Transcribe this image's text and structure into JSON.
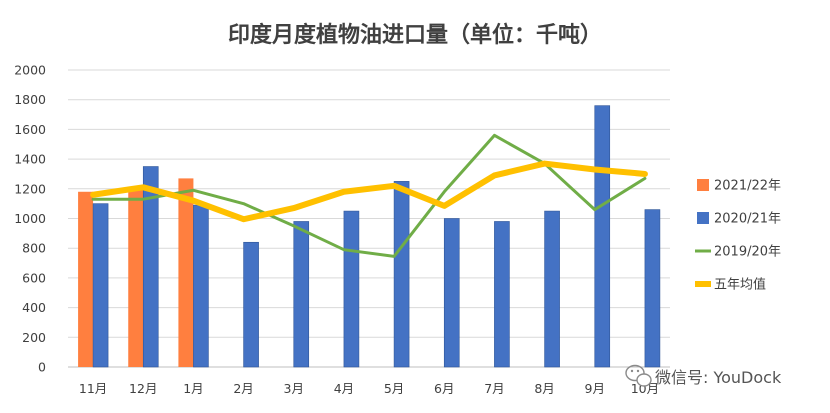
{
  "chart_data": {
    "type": "bar",
    "title": "印度月度植物油进口量（单位：千吨）",
    "categories": [
      "11月",
      "12月",
      "1月",
      "2月",
      "3月",
      "4月",
      "5月",
      "6月",
      "7月",
      "8月",
      "9月",
      "10月"
    ],
    "ylim": [
      0,
      2000
    ],
    "yticks": [
      0,
      200,
      400,
      600,
      800,
      1000,
      1200,
      1400,
      1600,
      1800,
      2000
    ],
    "grid": true,
    "legend_position": "right",
    "series": [
      {
        "name": "2021/22年",
        "type": "bar",
        "color": "#ff7f3f",
        "values": [
          1180,
          1210,
          1270,
          null,
          null,
          null,
          null,
          null,
          null,
          null,
          null,
          null
        ]
      },
      {
        "name": "2020/21年",
        "type": "bar",
        "color": "#4472c4",
        "values": [
          1100,
          1350,
          1090,
          840,
          980,
          1050,
          1250,
          1000,
          980,
          1050,
          1760,
          1060
        ]
      },
      {
        "name": "2019/20年",
        "type": "line",
        "color": "#70ad47",
        "values": [
          1130,
          1130,
          1190,
          1100,
          950,
          790,
          745,
          1180,
          1560,
          1370,
          1060,
          1270
        ]
      },
      {
        "name": "五年均值",
        "type": "line",
        "color": "#ffc000",
        "values": [
          1160,
          1210,
          1120,
          995,
          1070,
          1180,
          1220,
          1085,
          1290,
          1370,
          1330,
          1300
        ]
      }
    ]
  },
  "watermark": {
    "text": "微信号: YouDock",
    "icon": "wechat-icon"
  }
}
